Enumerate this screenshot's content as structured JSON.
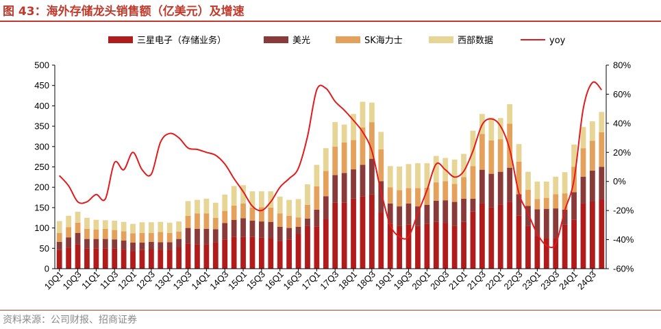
{
  "title": "图 43：海外存储龙头销售额（亿美元）及增速",
  "source": "资料来源：公司财报、招商证券",
  "colors": {
    "samsung": "#b01c1c",
    "micron": "#8b3a3a",
    "skhynix": "#e4a15c",
    "wd": "#e6d594",
    "yoy": "#e31a1c",
    "accent": "#c0392b"
  },
  "chart_data": {
    "type": "bar",
    "stacked": true,
    "categories": [
      "10Q1",
      "10Q2",
      "10Q3",
      "10Q4",
      "11Q1",
      "11Q2",
      "11Q3",
      "11Q4",
      "12Q1",
      "12Q2",
      "12Q3",
      "12Q4",
      "13Q1",
      "13Q2",
      "13Q3",
      "13Q4",
      "14Q1",
      "14Q2",
      "14Q3",
      "14Q4",
      "15Q1",
      "15Q2",
      "15Q3",
      "15Q4",
      "16Q1",
      "16Q2",
      "16Q3",
      "16Q4",
      "17Q1",
      "17Q2",
      "17Q3",
      "17Q4",
      "18Q1",
      "18Q2",
      "18Q3",
      "18Q4",
      "19Q1",
      "19Q2",
      "19Q3",
      "19Q4",
      "20Q1",
      "20Q2",
      "20Q3",
      "20Q4",
      "21Q1",
      "21Q2",
      "21Q3",
      "21Q4",
      "22Q1",
      "22Q2",
      "22Q3",
      "22Q4",
      "23Q1",
      "23Q2",
      "23Q3",
      "23Q4",
      "24Q1",
      "24Q2",
      "24Q3",
      "24Q4"
    ],
    "tick_labels": [
      "10Q1",
      "10Q3",
      "11Q1",
      "11Q3",
      "12Q1",
      "12Q3",
      "13Q1",
      "13Q3",
      "14Q1",
      "14Q3",
      "15Q1",
      "15Q3",
      "16Q1",
      "16Q3",
      "17Q1",
      "17Q3",
      "18Q1",
      "18Q3",
      "19Q1",
      "19Q3",
      "20Q1",
      "20Q3",
      "21Q1",
      "21Q3",
      "22Q1",
      "22Q3",
      "23Q1",
      "23Q3",
      "24Q1",
      "24Q3"
    ],
    "series": [
      {
        "name": "三星电子（存储业务）",
        "values": [
          46,
          52,
          60,
          50,
          50,
          50,
          50,
          47,
          43,
          46,
          48,
          47,
          47,
          53,
          62,
          60,
          60,
          65,
          72,
          78,
          78,
          78,
          76,
          75,
          68,
          72,
          85,
          105,
          104,
          122,
          162,
          162,
          172,
          178,
          182,
          138,
          110,
          105,
          108,
          105,
          110,
          115,
          112,
          105,
          115,
          140,
          160,
          150,
          158,
          164,
          130,
          105,
          80,
          75,
          75,
          108,
          120,
          160,
          165,
          170
        ]
      },
      {
        "name": "美光",
        "values": [
          20,
          25,
          28,
          23,
          23,
          23,
          22,
          22,
          21,
          18,
          18,
          18,
          18,
          20,
          38,
          38,
          38,
          32,
          40,
          42,
          46,
          40,
          40,
          40,
          35,
          28,
          18,
          18,
          41,
          56,
          68,
          73,
          72,
          77,
          88,
          77,
          50,
          48,
          52,
          48,
          47,
          52,
          56,
          59,
          57,
          32,
          83,
          83,
          80,
          84,
          53,
          49,
          66,
          72,
          73,
          37,
          68,
          66,
          76,
          80
        ]
      },
      {
        "name": "SK海力士",
        "values": [
          22,
          25,
          25,
          25,
          23,
          25,
          23,
          23,
          23,
          24,
          22,
          25,
          23,
          18,
          30,
          38,
          38,
          28,
          30,
          35,
          36,
          32,
          35,
          35,
          33,
          30,
          23,
          34,
          57,
          62,
          70,
          75,
          72,
          92,
          90,
          78,
          40,
          40,
          38,
          45,
          42,
          45,
          47,
          44,
          53,
          80,
          88,
          82,
          80,
          108,
          80,
          40,
          25,
          27,
          35,
          40,
          62,
          70,
          73,
          85
        ]
      },
      {
        "name": "西部数据",
        "values": [
          29,
          28,
          27,
          27,
          24,
          21,
          23,
          23,
          23,
          26,
          26,
          25,
          25,
          25,
          36,
          33,
          36,
          37,
          40,
          48,
          45,
          40,
          39,
          40,
          41,
          39,
          45,
          50,
          53,
          56,
          60,
          44,
          64,
          63,
          48,
          43,
          52,
          58,
          59,
          61,
          60,
          65,
          57,
          60,
          57,
          87,
          49,
          56,
          52,
          48,
          43,
          44,
          43,
          40,
          43,
          52,
          55,
          52,
          48,
          50
        ]
      },
      {
        "name": "yoy",
        "axis": "right",
        "values": [
          4,
          -3,
          -14,
          -14,
          -9,
          -12,
          13,
          8,
          20,
          8,
          5,
          27,
          33,
          30,
          23,
          22,
          20,
          18,
          12,
          2,
          -7,
          -17,
          -20,
          -14,
          -4,
          2,
          9,
          31,
          63,
          64,
          55,
          49,
          42,
          34,
          21,
          -7,
          -30,
          -38,
          -38,
          -22,
          -6,
          12,
          8,
          3,
          7,
          21,
          39,
          43,
          38,
          22,
          -8,
          -22,
          -36,
          -44,
          -43,
          -20,
          1,
          50,
          68,
          63
        ]
      }
    ],
    "ylim": [
      0,
      500
    ],
    "yticks": [
      "0",
      "50",
      "100",
      "150",
      "200",
      "250",
      "300",
      "350",
      "400",
      "450",
      "500"
    ],
    "y2lim": [
      -60,
      80
    ],
    "y2ticks": [
      "-60%",
      "-40%",
      "-20%",
      "0%",
      "20%",
      "40%",
      "60%",
      "80%"
    ],
    "legend_position": "top"
  }
}
